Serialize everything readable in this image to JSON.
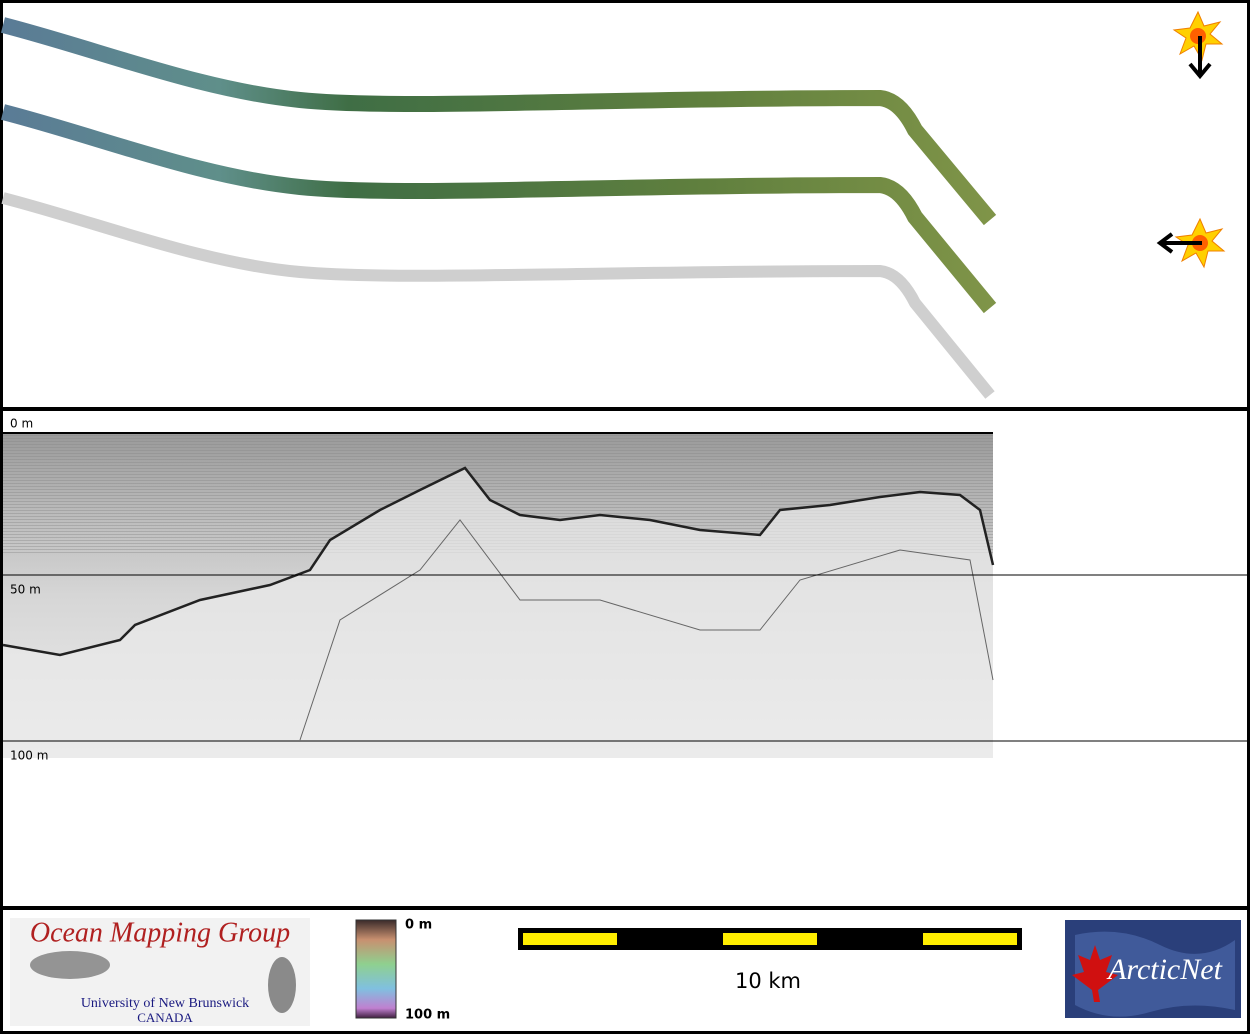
{
  "profile": {
    "depth_labels": [
      "0 m",
      "50 m",
      "100 m"
    ]
  },
  "footer": {
    "logo_left": {
      "title": "Ocean Mapping Group",
      "subtitle": "University of New Brunswick",
      "country": "CANADA"
    },
    "colorbar": {
      "top_label": "0 m",
      "bottom_label": "100 m"
    },
    "scale_bar": {
      "label": "10 km"
    },
    "logo_right": {
      "title": "ArcticNet"
    }
  }
}
